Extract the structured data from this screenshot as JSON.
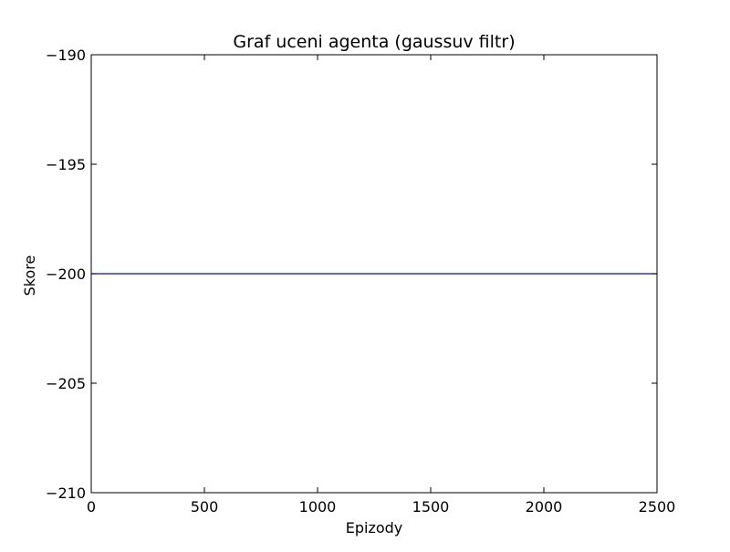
{
  "chart_data": {
    "type": "line",
    "title": "Graf uceni agenta (gaussuv filtr)",
    "xlabel": "Epizody",
    "ylabel": "Skore",
    "xlim": [
      0,
      2500
    ],
    "ylim": [
      -210,
      -190
    ],
    "x_ticks": [
      0,
      500,
      1000,
      1500,
      2000,
      2500
    ],
    "x_tick_labels": [
      "0",
      "500",
      "1000",
      "1500",
      "2000",
      "2500"
    ],
    "y_ticks": [
      -190,
      -195,
      -200,
      -205,
      -210
    ],
    "y_tick_labels": [
      "−190",
      "−195",
      "−200",
      "−205",
      "−210"
    ],
    "grid": false,
    "series": [
      {
        "color": "#0000ff",
        "x": [
          0,
          2500
        ],
        "y": [
          -200,
          -200
        ]
      }
    ]
  }
}
